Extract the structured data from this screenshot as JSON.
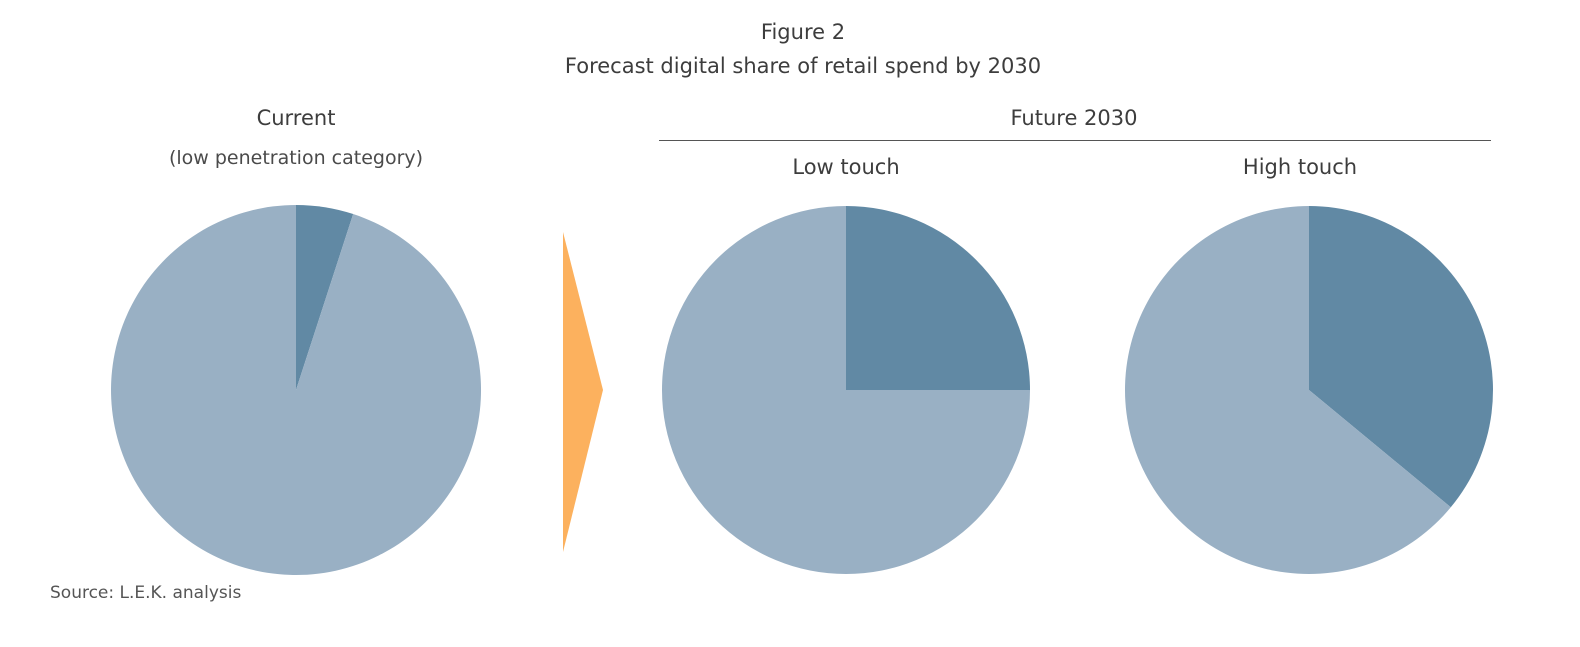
{
  "figure_label": "Figure 2",
  "title": "Forecast digital share of retail spend by 2030",
  "group_label": "Future 2030",
  "source": "Source: L.E.K. analysis",
  "colors": {
    "digital": "#6189a4",
    "rest": "#99b0c4",
    "arrow": "#fcb15e"
  },
  "chart_data": [
    {
      "type": "pie",
      "title": "Current",
      "subtitle": "(low penetration category)",
      "slices": [
        {
          "label": "",
          "value": 5
        },
        {
          "label": "",
          "value": 95
        }
      ]
    },
    {
      "type": "pie",
      "title": "Low touch",
      "subtitle": "",
      "slices": [
        {
          "label": "",
          "value": 25
        },
        {
          "label": "",
          "value": 75
        }
      ]
    },
    {
      "type": "pie",
      "title": "High touch",
      "subtitle": "",
      "slices": [
        {
          "label": "",
          "value": 36
        },
        {
          "label": "",
          "value": 64
        }
      ]
    }
  ]
}
